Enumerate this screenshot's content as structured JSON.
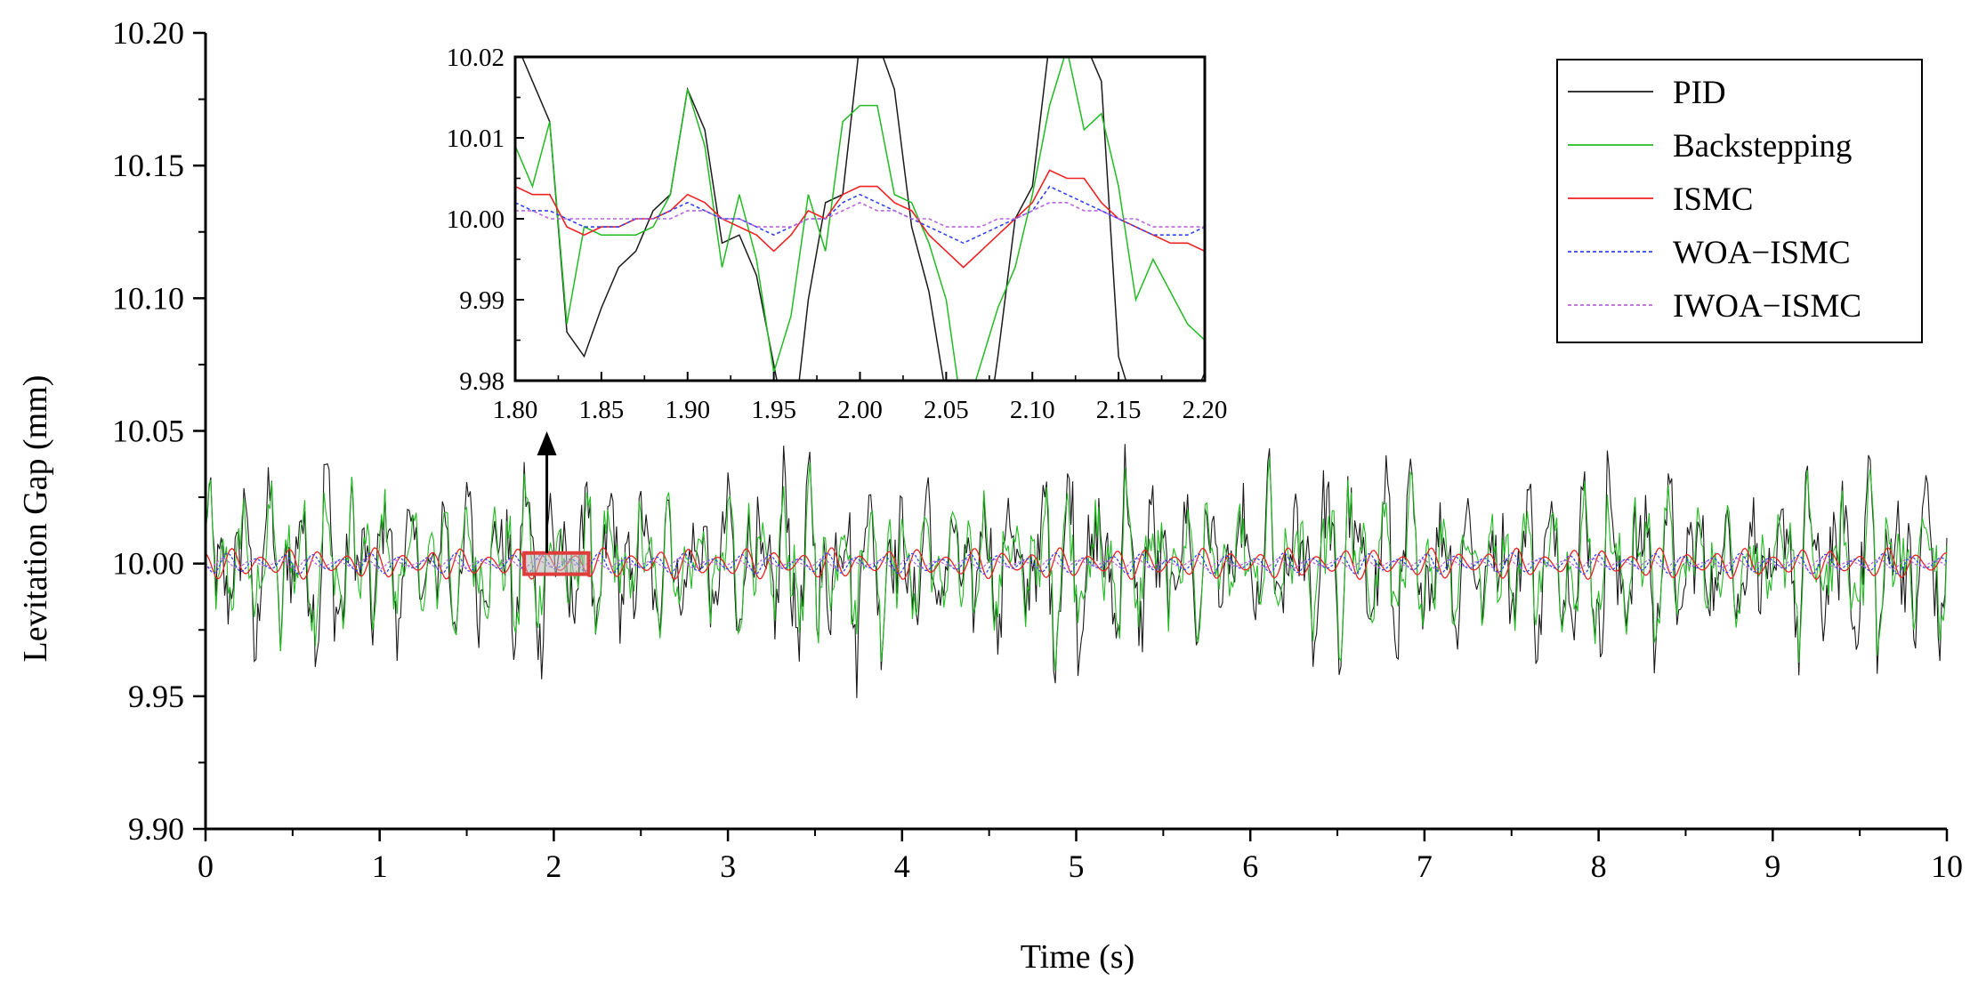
{
  "chart_data": {
    "type": "line",
    "xlabel": "Time (s)",
    "ylabel": "Levitation Gap (mm)",
    "xlim": [
      0,
      10
    ],
    "ylim": [
      9.9,
      10.2
    ],
    "x_ticks": [
      "0",
      "1",
      "2",
      "3",
      "4",
      "5",
      "6",
      "7",
      "8",
      "9",
      "10"
    ],
    "y_ticks": [
      "9.90",
      "9.95",
      "10.00",
      "10.05",
      "10.10",
      "10.15",
      "10.20"
    ],
    "grid": false,
    "legend_position": "top-right",
    "colors": {
      "PID": "#1a1a1a",
      "Backstepping": "#22bb22",
      "ISMC": "#ee2222",
      "WOA-ISMC": "#3344ee",
      "IWOA-ISMC": "#bb66dd",
      "zoom_box": "#e03c3c"
    },
    "series": [
      {
        "name": "PID",
        "amplitude_mm": 0.035,
        "peak_max": 10.065,
        "peak_min": 9.915
      },
      {
        "name": "Backstepping",
        "amplitude_mm": 0.03
      },
      {
        "name": "ISMC",
        "amplitude_mm": 0.006
      },
      {
        "name": "WOA−ISMC",
        "amplitude_mm": 0.004
      },
      {
        "name": "IWOA−ISMC",
        "amplitude_mm": 0.002
      }
    ],
    "inset": {
      "type": "line",
      "xlim": [
        1.8,
        2.2
      ],
      "ylim": [
        9.98,
        10.02
      ],
      "x_ticks": [
        "1.80",
        "1.85",
        "1.90",
        "1.95",
        "2.00",
        "2.05",
        "2.10",
        "2.15",
        "2.20"
      ],
      "y_ticks": [
        "9.98",
        "9.99",
        "10.00",
        "10.01",
        "10.02"
      ],
      "x": [
        1.8,
        1.81,
        1.82,
        1.83,
        1.84,
        1.85,
        1.86,
        1.87,
        1.88,
        1.89,
        1.9,
        1.91,
        1.92,
        1.93,
        1.94,
        1.95,
        1.96,
        1.97,
        1.98,
        1.99,
        2.0,
        2.01,
        2.02,
        2.03,
        2.04,
        2.05,
        2.06,
        2.07,
        2.08,
        2.09,
        2.1,
        2.11,
        2.12,
        2.13,
        2.14,
        2.15,
        2.16,
        2.17,
        2.18,
        2.19,
        2.2
      ],
      "series": [
        {
          "name": "PID",
          "values": [
            10.022,
            10.017,
            10.012,
            9.986,
            9.983,
            9.989,
            9.994,
            9.996,
            10.001,
            10.003,
            10.016,
            10.011,
            9.997,
            9.998,
            9.993,
            9.982,
            9.971,
            9.99,
            10.002,
            10.003,
            10.022,
            10.022,
            10.016,
            9.999,
            9.991,
            9.978,
            9.97,
            9.968,
            9.983,
            10.0,
            10.004,
            10.022,
            10.023,
            10.022,
            10.017,
            9.983,
            9.976,
            9.97,
            9.972,
            9.976,
            9.981
          ]
        },
        {
          "name": "Backstepping",
          "values": [
            10.009,
            10.004,
            10.012,
            9.987,
            9.999,
            9.998,
            9.998,
            9.998,
            9.999,
            10.003,
            10.016,
            10.009,
            9.994,
            10.003,
            9.995,
            9.981,
            9.988,
            10.003,
            9.996,
            10.012,
            10.014,
            10.014,
            10.003,
            10.002,
            9.997,
            9.99,
            9.975,
            9.982,
            9.989,
            9.994,
            10.003,
            10.014,
            10.021,
            10.011,
            10.013,
            10.004,
            9.99,
            9.995,
            9.991,
            9.987,
            9.985
          ]
        },
        {
          "name": "ISMC",
          "values": [
            10.004,
            10.003,
            10.003,
            9.999,
            9.998,
            9.999,
            9.999,
            10.0,
            10.0,
            10.001,
            10.003,
            10.002,
            10.0,
            9.999,
            9.998,
            9.996,
            9.998,
            10.001,
            10.0,
            10.003,
            10.004,
            10.004,
            10.002,
            10.001,
            9.998,
            9.996,
            9.994,
            9.996,
            9.998,
            10.0,
            10.002,
            10.006,
            10.005,
            10.005,
            10.002,
            10.0,
            9.999,
            9.998,
            9.997,
            9.997,
            9.996
          ]
        },
        {
          "name": "WOA−ISMC",
          "values": [
            10.002,
            10.001,
            10.001,
            10.0,
            9.999,
            9.999,
            9.999,
            10.0,
            10.0,
            10.001,
            10.002,
            10.001,
            10.0,
            10.0,
            9.999,
            9.998,
            9.999,
            10.0,
            10.0,
            10.002,
            10.003,
            10.002,
            10.001,
            10.0,
            9.999,
            9.998,
            9.997,
            9.998,
            9.999,
            10.0,
            10.001,
            10.004,
            10.003,
            10.002,
            10.001,
            10.0,
            9.999,
            9.998,
            9.998,
            9.998,
            9.999
          ]
        },
        {
          "name": "IWOA−ISMC",
          "values": [
            10.001,
            10.001,
            10.0,
            10.0,
            10.0,
            10.0,
            10.0,
            10.0,
            10.0,
            10.0,
            10.001,
            10.001,
            10.0,
            10.0,
            9.999,
            9.999,
            9.999,
            10.0,
            10.0,
            10.001,
            10.002,
            10.001,
            10.001,
            10.0,
            10.0,
            9.999,
            9.999,
            9.999,
            10.0,
            10.0,
            10.001,
            10.002,
            10.002,
            10.001,
            10.001,
            10.0,
            10.0,
            9.999,
            9.999,
            9.999,
            9.999
          ]
        }
      ]
    },
    "zoom_region": {
      "x": [
        1.83,
        2.2
      ],
      "y": [
        9.996,
        10.004
      ]
    }
  }
}
